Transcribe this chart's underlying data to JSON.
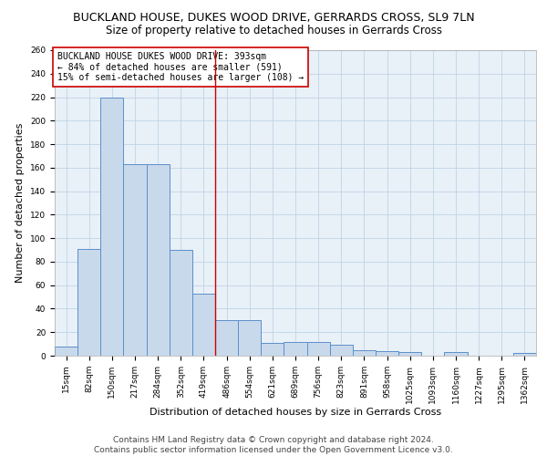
{
  "title": "BUCKLAND HOUSE, DUKES WOOD DRIVE, GERRARDS CROSS, SL9 7LN",
  "subtitle": "Size of property relative to detached houses in Gerrards Cross",
  "xlabel": "Distribution of detached houses by size in Gerrards Cross",
  "ylabel": "Number of detached properties",
  "footer_line1": "Contains HM Land Registry data © Crown copyright and database right 2024.",
  "footer_line2": "Contains public sector information licensed under the Open Government Licence v3.0.",
  "categories": [
    "15sqm",
    "82sqm",
    "150sqm",
    "217sqm",
    "284sqm",
    "352sqm",
    "419sqm",
    "486sqm",
    "554sqm",
    "621sqm",
    "689sqm",
    "756sqm",
    "823sqm",
    "891sqm",
    "958sqm",
    "1025sqm",
    "1093sqm",
    "1160sqm",
    "1227sqm",
    "1295sqm",
    "1362sqm"
  ],
  "values": [
    8,
    91,
    220,
    163,
    163,
    90,
    53,
    30,
    30,
    11,
    12,
    12,
    9,
    5,
    4,
    3,
    0,
    3,
    0,
    0,
    2
  ],
  "bar_color": "#c9d9ec",
  "bar_edge_color": "#5b8fc9",
  "reference_line_x": 6.5,
  "reference_line_color": "#cc0000",
  "annotation_text": "BUCKLAND HOUSE DUKES WOOD DRIVE: 393sqm\n← 84% of detached houses are smaller (591)\n15% of semi-detached houses are larger (108) →",
  "annotation_box_color": "#ffffff",
  "annotation_box_edge_color": "#cc0000",
  "ylim": [
    0,
    260
  ],
  "yticks": [
    0,
    20,
    40,
    60,
    80,
    100,
    120,
    140,
    160,
    180,
    200,
    220,
    240,
    260
  ],
  "grid_color": "#b8cfe0",
  "background_color": "#e8f0f8",
  "title_fontsize": 9,
  "subtitle_fontsize": 8.5,
  "xlabel_fontsize": 8,
  "ylabel_fontsize": 8,
  "tick_fontsize": 6.5,
  "annotation_fontsize": 7,
  "footer_fontsize": 6.5
}
